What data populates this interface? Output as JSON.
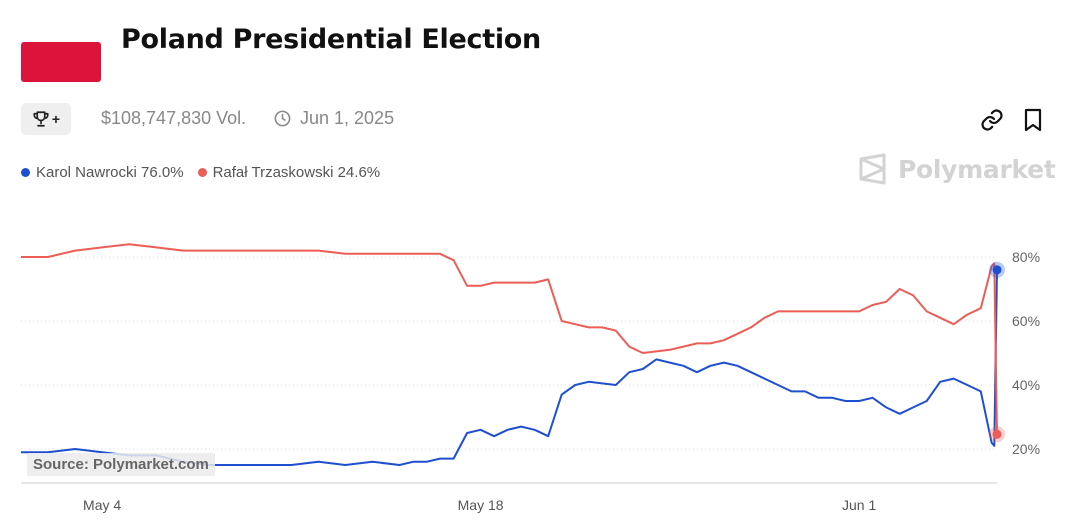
{
  "header": {
    "title": "Poland Presidential Election",
    "flag_color": "#dc143c",
    "volume": "$108,747,830 Vol.",
    "date": "Jun 1, 2025",
    "trophy_icon": "trophy-icon",
    "plus_label": "+"
  },
  "actions": {
    "link_icon": "link-icon",
    "bookmark_icon": "bookmark-icon"
  },
  "brand": {
    "name": "Polymarket",
    "icon": "polymarket-logo-icon"
  },
  "source_label": "Source: Polymarket.com",
  "colors": {
    "blue": "#1f4fd1",
    "red": "#ec5d56",
    "brand_gray": "#d3d3d3"
  },
  "chart_data": {
    "type": "line",
    "x_ticks": [
      "May 4",
      "May 18",
      "Jun 1"
    ],
    "y_ticks": [
      "20%",
      "40%",
      "60%",
      "80%"
    ],
    "ylim": [
      18,
      85
    ],
    "grid": true,
    "legend_position": "top-left",
    "series": [
      {
        "name": "Karol Nawrocki",
        "legend_label": "Karol Nawrocki 76.0%",
        "current": 76.0,
        "color": "#1f4fd1",
        "points": [
          [
            0,
            19
          ],
          [
            1,
            19
          ],
          [
            2,
            20
          ],
          [
            3,
            19
          ],
          [
            4,
            18
          ],
          [
            5,
            18
          ],
          [
            6,
            16
          ],
          [
            7,
            15
          ],
          [
            8,
            15
          ],
          [
            10,
            15
          ],
          [
            11,
            16
          ],
          [
            12,
            15
          ],
          [
            13,
            16
          ],
          [
            14,
            15
          ],
          [
            14.5,
            16
          ],
          [
            15,
            16
          ],
          [
            15.5,
            17
          ],
          [
            16,
            17
          ],
          [
            16.5,
            25
          ],
          [
            17,
            26
          ],
          [
            17.5,
            24
          ],
          [
            18,
            26
          ],
          [
            18.5,
            27
          ],
          [
            19,
            26
          ],
          [
            19.5,
            24
          ],
          [
            20,
            37
          ],
          [
            20.5,
            40
          ],
          [
            21,
            41
          ],
          [
            22,
            40
          ],
          [
            22.5,
            44
          ],
          [
            23,
            45
          ],
          [
            23.5,
            48
          ],
          [
            24,
            47
          ],
          [
            24.5,
            46
          ],
          [
            25,
            44
          ],
          [
            25.5,
            46
          ],
          [
            26,
            47
          ],
          [
            26.5,
            46
          ],
          [
            27,
            44
          ],
          [
            27.5,
            42
          ],
          [
            28,
            40
          ],
          [
            28.5,
            38
          ],
          [
            29,
            38
          ],
          [
            29.5,
            36
          ],
          [
            30,
            36
          ],
          [
            30.5,
            35
          ],
          [
            31,
            35
          ],
          [
            31.5,
            36
          ],
          [
            32,
            33
          ],
          [
            32.5,
            31
          ],
          [
            33,
            33
          ],
          [
            33.5,
            35
          ],
          [
            34,
            41
          ],
          [
            34.5,
            42
          ],
          [
            35,
            40
          ],
          [
            35.5,
            38
          ],
          [
            35.9,
            22
          ],
          [
            36,
            21
          ],
          [
            36.1,
            76
          ]
        ]
      },
      {
        "name": "Rafał Trzaskowski",
        "legend_label": "Rafał Trzaskowski 24.6%",
        "current": 24.6,
        "color": "#ec5d56",
        "points": [
          [
            0,
            80
          ],
          [
            1,
            80
          ],
          [
            2,
            82
          ],
          [
            3,
            83
          ],
          [
            4,
            84
          ],
          [
            5,
            83
          ],
          [
            6,
            82
          ],
          [
            7,
            82
          ],
          [
            8,
            82
          ],
          [
            9,
            82
          ],
          [
            10,
            82
          ],
          [
            11,
            82
          ],
          [
            12,
            81
          ],
          [
            13,
            81
          ],
          [
            14,
            81
          ],
          [
            15,
            81
          ],
          [
            15.5,
            81
          ],
          [
            16,
            79
          ],
          [
            16.5,
            71
          ],
          [
            17,
            71
          ],
          [
            17.5,
            72
          ],
          [
            18,
            72
          ],
          [
            18.5,
            72
          ],
          [
            19,
            72
          ],
          [
            19.5,
            73
          ],
          [
            20,
            60
          ],
          [
            20.5,
            59
          ],
          [
            21,
            58
          ],
          [
            21.5,
            58
          ],
          [
            22,
            57
          ],
          [
            22.5,
            52
          ],
          [
            23,
            50
          ],
          [
            24,
            51
          ],
          [
            24.5,
            52
          ],
          [
            25,
            53
          ],
          [
            25.5,
            53
          ],
          [
            26,
            54
          ],
          [
            26.5,
            56
          ],
          [
            27,
            58
          ],
          [
            27.5,
            61
          ],
          [
            28,
            63
          ],
          [
            29,
            63
          ],
          [
            30,
            63
          ],
          [
            31,
            63
          ],
          [
            31.5,
            65
          ],
          [
            32,
            66
          ],
          [
            32.5,
            70
          ],
          [
            33,
            68
          ],
          [
            33.5,
            63
          ],
          [
            34,
            61
          ],
          [
            34.5,
            59
          ],
          [
            35,
            62
          ],
          [
            35.5,
            64
          ],
          [
            35.9,
            77
          ],
          [
            36,
            78
          ],
          [
            36.1,
            24.6
          ]
        ]
      }
    ]
  }
}
